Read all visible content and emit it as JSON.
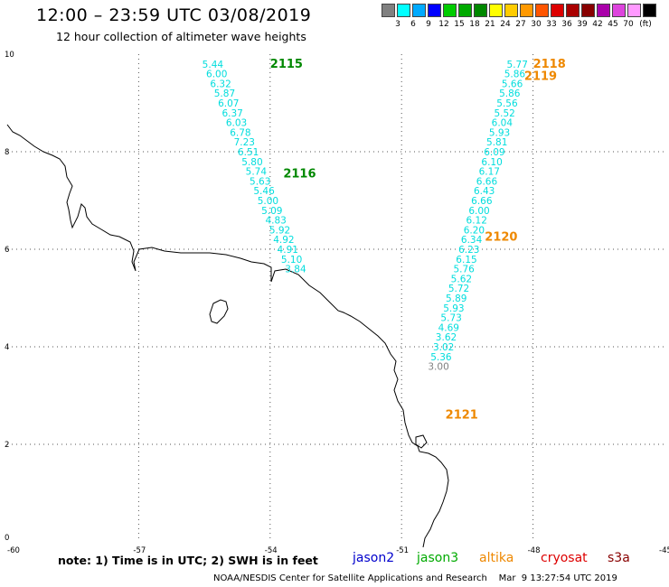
{
  "header": {
    "title": "12:00 – 23:59 UTC 03/08/2019",
    "subtitle": "12 hour collection of altimeter wave heights"
  },
  "colorbar": {
    "swatches": [
      "#808080",
      "#00ffff",
      "#00aaff",
      "#0000ff",
      "#00cc00",
      "#00aa00",
      "#008800",
      "#ffff00",
      "#ffcc00",
      "#ff9900",
      "#ff5500",
      "#dd0000",
      "#aa0000",
      "#880000",
      "#aa00aa",
      "#dd44dd",
      "#ff99ff",
      "#000000"
    ],
    "labels": [
      "3",
      "6",
      "9",
      "12",
      "15",
      "18",
      "21",
      "24",
      "27",
      "30",
      "33",
      "36",
      "39",
      "42",
      "45",
      "70"
    ],
    "unit": "(ft)"
  },
  "axes": {
    "x_ticks": [
      "-60",
      "-57",
      "-54",
      "-51",
      "-48",
      "-45"
    ],
    "y_ticks": [
      "0",
      "2",
      "4",
      "6",
      "8",
      "10"
    ]
  },
  "tracks": [
    {
      "pass": "2115",
      "pass_color": "#008800",
      "pass_pos": [
        -54,
        9.8
      ],
      "start": [
        -55.55,
        9.8
      ],
      "step": [
        0.09,
        -0.2
      ],
      "values": [
        "5.44",
        "6.00",
        "6.32",
        "5.87",
        "6.07",
        "6.37",
        "6.03",
        "6.78",
        "7.23",
        "6.51",
        "5.80",
        "5.74",
        "5.63",
        "5.46",
        "5.00",
        "5.09",
        "4.83",
        "5.92",
        "4.92",
        "4.91",
        "5.10",
        "3.84"
      ],
      "colors": [
        "#00dddd"
      ]
    },
    {
      "pass": "2116",
      "pass_color": "#008800",
      "pass_pos": [
        -53.7,
        7.55
      ]
    },
    {
      "pass": "2118",
      "pass_color": "#ee8800",
      "pass_pos": [
        -48,
        9.8
      ],
      "start": [
        -48.6,
        9.8
      ],
      "step": [
        -0.058,
        -0.2
      ],
      "values": [
        "5.77",
        "5.86",
        "5.66",
        "5.86",
        "5.56",
        "5.52",
        "6.04",
        "5.93",
        "5.81",
        "6.09",
        "6.10",
        "6.17",
        "6.66",
        "6.43",
        "6.66",
        "6.00",
        "6.12",
        "6.20",
        "6.34",
        "6.23",
        "6.15",
        "5.76",
        "5.62",
        "5.72",
        "5.89",
        "5.93",
        "5.73",
        "4.69",
        "3.62",
        "3.02",
        "5.36",
        "3.00"
      ],
      "colors": [
        "#00dddd"
      ]
    },
    {
      "pass": "2119",
      "pass_color": "#ee8800",
      "pass_pos": [
        -48.2,
        9.55
      ]
    },
    {
      "pass": "2120",
      "pass_color": "#ee8800",
      "pass_pos": [
        -49.1,
        6.25
      ]
    },
    {
      "pass": "2121",
      "pass_color": "#ee8800",
      "pass_pos": [
        -50.0,
        2.6
      ]
    }
  ],
  "footer": {
    "note": "note:  1) Time is in UTC;  2) SWH is in feet",
    "satellites": [
      {
        "name": "jason2",
        "color": "#0000cc"
      },
      {
        "name": "jason3",
        "color": "#00aa00"
      },
      {
        "name": "altika",
        "color": "#ee8800"
      },
      {
        "name": "cryosat",
        "color": "#dd0000"
      },
      {
        "name": "s3a",
        "color": "#880000"
      }
    ],
    "credit": "NOAA/NESDIS Center for Satellite Applications and Research    Mar  9 13:27:54 UTC 2019"
  }
}
